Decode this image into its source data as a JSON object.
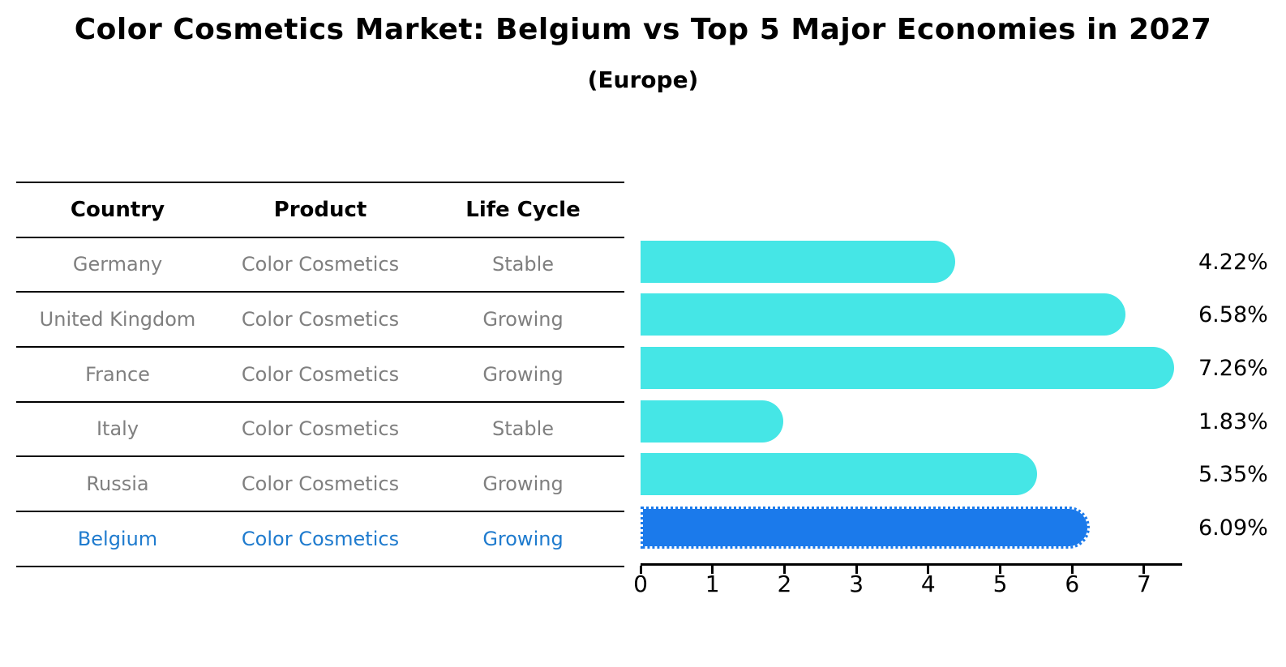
{
  "title": "Color Cosmetics Market: Belgium vs Top 5 Major Economies in 2027",
  "subtitle": "(Europe)",
  "colors": {
    "bar_default": "#45e6e6",
    "bar_highlight": "#1b7aeb",
    "highlight_text": "#1f7bce",
    "row_text": "#7f7f7f",
    "heading_text": "#000000"
  },
  "table": {
    "columns": [
      "Country",
      "Product",
      "Life Cycle"
    ],
    "rows": [
      {
        "country": "Germany",
        "product": "Color Cosmetics",
        "life_cycle": "Stable",
        "highlight": false
      },
      {
        "country": "United Kingdom",
        "product": "Color Cosmetics",
        "life_cycle": "Growing",
        "highlight": false
      },
      {
        "country": "France",
        "product": "Color Cosmetics",
        "life_cycle": "Growing",
        "highlight": false
      },
      {
        "country": "Italy",
        "product": "Color Cosmetics",
        "life_cycle": "Stable",
        "highlight": false
      },
      {
        "country": "Russia",
        "product": "Color Cosmetics",
        "life_cycle": "Growing",
        "highlight": false
      },
      {
        "country": "Belgium",
        "product": "Color Cosmetics",
        "life_cycle": "Growing",
        "highlight": true
      }
    ]
  },
  "chart_data": {
    "type": "bar",
    "orientation": "horizontal",
    "title": "Color Cosmetics Market: Belgium vs Top 5 Major Economies in 2027 (Europe)",
    "categories": [
      "Germany",
      "United Kingdom",
      "France",
      "Italy",
      "Russia",
      "Belgium"
    ],
    "values": [
      4.22,
      6.58,
      7.26,
      1.83,
      5.35,
      6.09
    ],
    "value_labels": [
      "4.22%",
      "6.58%",
      "7.26%",
      "1.83%",
      "5.35%",
      "6.09%"
    ],
    "highlight_category": "Belgium",
    "xlabel": "",
    "ylabel": "",
    "xlim": [
      0,
      7.53
    ],
    "x_ticks": [
      "0",
      "1",
      "2",
      "3",
      "4",
      "5",
      "6",
      "7"
    ],
    "grid": false,
    "legend": false
  }
}
